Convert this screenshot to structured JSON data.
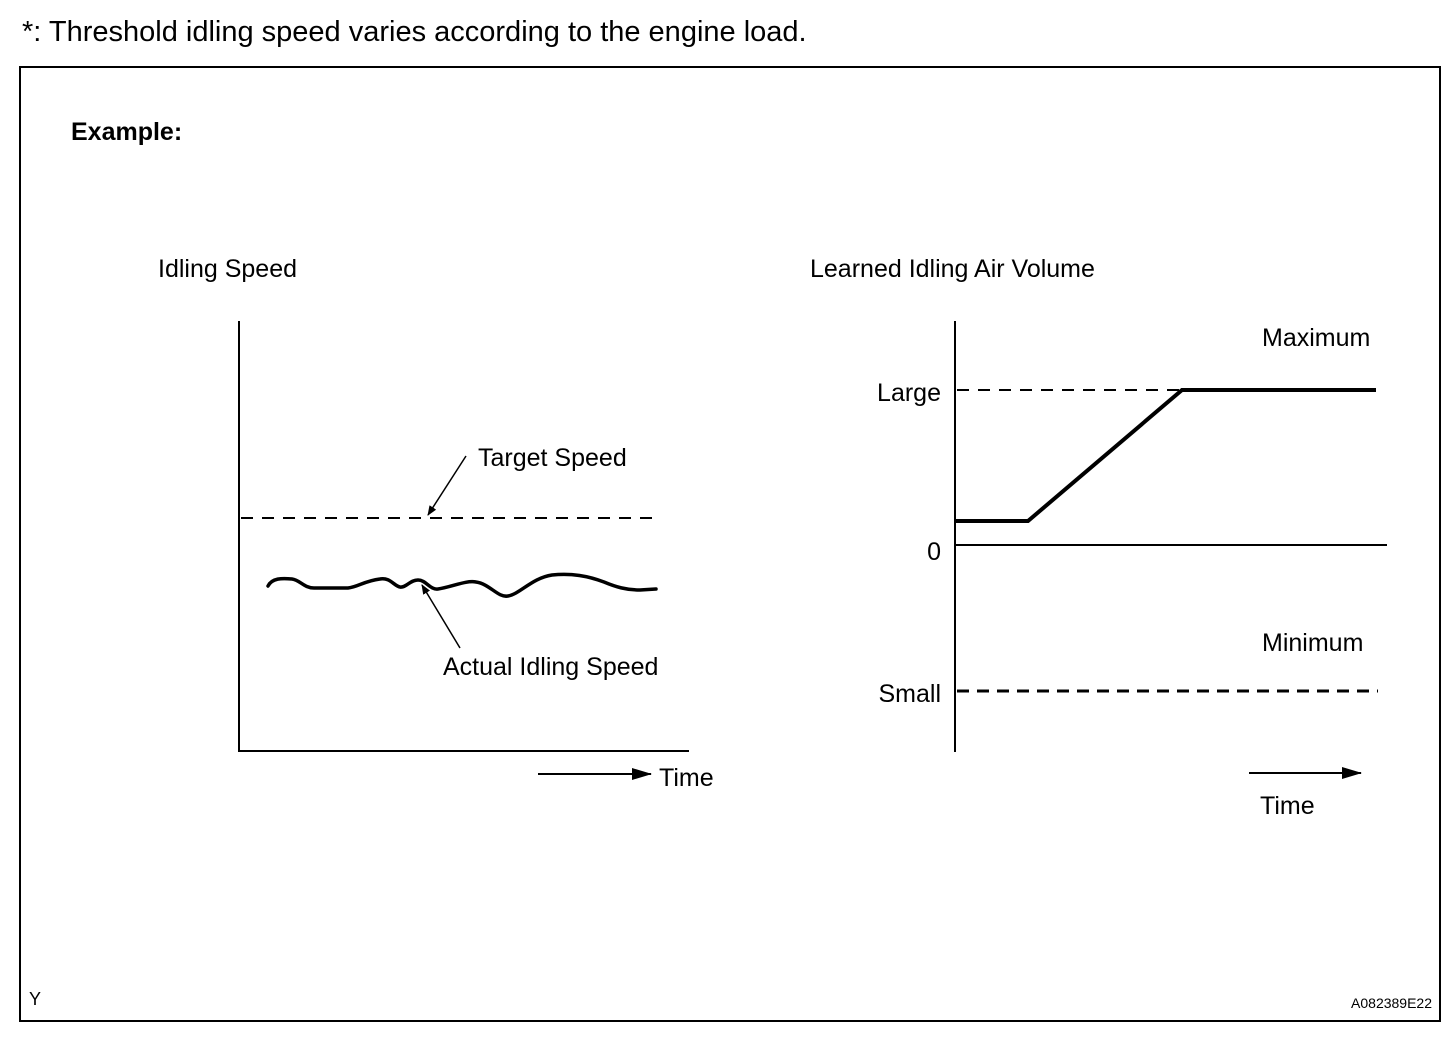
{
  "note": "*: Threshold idling speed varies according to the engine load.",
  "figure": {
    "heading": "Example:",
    "left_graph": {
      "title": "Idling Speed",
      "target_label": "Target Speed",
      "actual_label": "Actual Idling Speed",
      "time_label": "Time"
    },
    "right_graph": {
      "title": "Learned Idling Air Volume",
      "maximum_label": "Maximum",
      "large_label": "Large",
      "zero_label": "0",
      "minimum_label": "Minimum",
      "small_label": "Small",
      "time_label": "Time"
    },
    "corner_left": "Y",
    "figure_id": "A082389E22"
  }
}
